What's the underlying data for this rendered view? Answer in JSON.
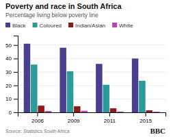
{
  "chart_data": {
    "type": "bar",
    "title": "Poverty and race in South Africa",
    "subtitle": "Percentage living below poverty line",
    "categories": [
      "2006",
      "2009",
      "2011",
      "2015"
    ],
    "series": [
      {
        "name": "Black",
        "color": "#4a3f8f",
        "values": [
          51,
          48,
          36,
          40
        ]
      },
      {
        "name": "Coloured",
        "color": "#2a9a9a",
        "values": [
          35.5,
          30.5,
          20.5,
          23.5
        ]
      },
      {
        "name": "Indian/Asian",
        "color": "#8b1a1a",
        "values": [
          5.0,
          4.5,
          3.0,
          1.5
        ]
      },
      {
        "name": "White",
        "color": "#bb44bb",
        "values": [
          1.0,
          1.2,
          0.6,
          0.5
        ]
      }
    ],
    "ylim": [
      0,
      57
    ],
    "yticks": [
      0,
      10,
      20,
      30,
      40,
      50
    ],
    "grid": true,
    "legend": "top",
    "annotations": [
      "Source: Statistics South Africa",
      "BBC"
    ]
  }
}
